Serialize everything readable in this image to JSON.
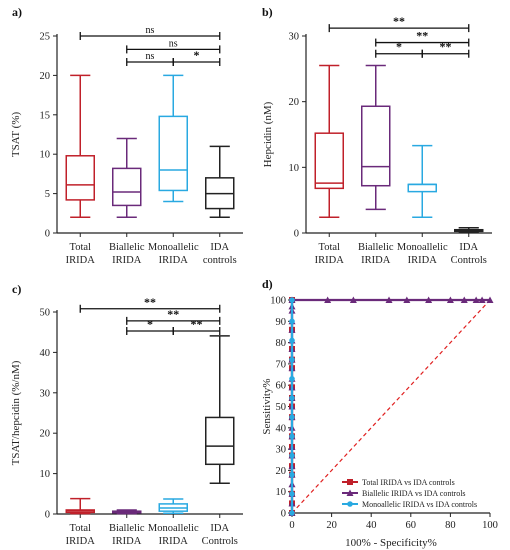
{
  "chart_data": [
    {
      "panel": "a)",
      "type": "box",
      "ylabel": "TSAT (%)",
      "ylim": [
        0,
        25
      ],
      "yticks": [
        0,
        5,
        10,
        15,
        20,
        25
      ],
      "categories": [
        "Total\nIRIDA",
        "Biallelic\nIRIDA",
        "Monoallelic\nIRIDA",
        "IDA\ncontrols"
      ],
      "colors": [
        "#c0202a",
        "#6a2a7a",
        "#29a9e1",
        "#222222"
      ],
      "boxes": [
        {
          "min": 2.0,
          "q1": 4.2,
          "median": 6.1,
          "q3": 9.8,
          "max": 20.0
        },
        {
          "min": 2.0,
          "q1": 3.5,
          "median": 5.2,
          "q3": 8.2,
          "max": 12.0
        },
        {
          "min": 4.0,
          "q1": 5.4,
          "median": 8.0,
          "q3": 14.8,
          "max": 20.0
        },
        {
          "min": 2.0,
          "q1": 3.1,
          "median": 5.0,
          "q3": 7.0,
          "max": 11.0
        }
      ],
      "significance": [
        {
          "from": 0,
          "to": 3,
          "label": "ns",
          "y": 25.0
        },
        {
          "from": 1,
          "to": 3,
          "label": "ns",
          "y": 23.3
        },
        {
          "from": 1,
          "to": 2,
          "label": "ns",
          "y": 21.7
        },
        {
          "from": 2,
          "to": 3,
          "label": "*",
          "y": 21.7
        }
      ]
    },
    {
      "panel": "b)",
      "type": "box",
      "ylabel": "Hepcidin (nM)",
      "ylim": [
        0,
        30
      ],
      "yticks": [
        0,
        10,
        20,
        30
      ],
      "categories": [
        "Total\nIRIDA",
        "Biallelic\nIRIDA",
        "Monoallelic\nIRIDA",
        "IDA\nControls"
      ],
      "colors": [
        "#c0202a",
        "#6a2a7a",
        "#29a9e1",
        "#222222"
      ],
      "boxes": [
        {
          "min": 2.4,
          "q1": 6.8,
          "median": 7.6,
          "q3": 15.2,
          "max": 25.5
        },
        {
          "min": 3.6,
          "q1": 7.2,
          "median": 10.1,
          "q3": 19.3,
          "max": 25.5
        },
        {
          "min": 2.4,
          "q1": 6.3,
          "median": 7.4,
          "q3": 7.4,
          "max": 13.3
        },
        {
          "min": 0.1,
          "q1": 0.25,
          "median": 0.4,
          "q3": 0.5,
          "max": 0.8
        }
      ],
      "significance": [
        {
          "from": 0,
          "to": 3,
          "label": "**",
          "y": 31.2
        },
        {
          "from": 1,
          "to": 3,
          "label": "**",
          "y": 29.0
        },
        {
          "from": 1,
          "to": 2,
          "label": "*",
          "y": 27.3
        },
        {
          "from": 2,
          "to": 3,
          "label": "**",
          "y": 27.3
        }
      ]
    },
    {
      "panel": "c)",
      "type": "box",
      "ylabel": "TSAT/hepcidin (%/nM)",
      "ylim": [
        0,
        50
      ],
      "yticks": [
        0,
        10,
        20,
        30,
        40,
        50
      ],
      "categories": [
        "Total\nIRIDA",
        "Biallelic\nIRIDA",
        "Monoallelic\nIRIDA",
        "IDA\nControls"
      ],
      "colors": [
        "#c0202a",
        "#6a2a7a",
        "#29a9e1",
        "#222222"
      ],
      "boxes": [
        {
          "min": 0.1,
          "q1": 0.4,
          "median": 0.8,
          "q3": 1.0,
          "max": 3.8
        },
        {
          "min": 0.1,
          "q1": 0.3,
          "median": 0.5,
          "q3": 0.7,
          "max": 1.0
        },
        {
          "min": 0.2,
          "q1": 0.7,
          "median": 1.5,
          "q3": 2.5,
          "max": 3.7
        },
        {
          "min": 7.6,
          "q1": 12.3,
          "median": 16.8,
          "q3": 23.9,
          "max": 44.1
        }
      ],
      "significance": [
        {
          "from": 0,
          "to": 3,
          "label": "**",
          "y": 50.8
        },
        {
          "from": 1,
          "to": 3,
          "label": "**",
          "y": 47.8
        },
        {
          "from": 1,
          "to": 2,
          "label": "*",
          "y": 45.3
        },
        {
          "from": 2,
          "to": 3,
          "label": "**",
          "y": 45.3
        }
      ]
    },
    {
      "panel": "d)",
      "type": "line",
      "xlabel": "100% - Specificity%",
      "ylabel": "Sensitivity%",
      "xlim": [
        0,
        100
      ],
      "ylim": [
        0,
        100
      ],
      "xticks": [
        0,
        20,
        40,
        60,
        80,
        100
      ],
      "yticks": [
        0,
        10,
        20,
        30,
        40,
        50,
        60,
        70,
        80,
        90,
        100
      ],
      "reference_line": {
        "x": [
          0,
          100
        ],
        "y": [
          0,
          100
        ],
        "color": "#e02020"
      },
      "legend_position": "bottom-right",
      "series": [
        {
          "name": "Total IRIDA vs IDA controls",
          "color": "#c0202a",
          "marker": "square",
          "x": [
            0,
            0,
            0,
            0,
            0,
            0,
            0,
            0,
            0,
            0,
            0,
            0,
            0,
            0,
            0,
            0,
            0
          ],
          "y": [
            0,
            4.5,
            9,
            18,
            22,
            27,
            31,
            36,
            45,
            50,
            54,
            59,
            68,
            72,
            77,
            86,
            100
          ]
        },
        {
          "name": "Biallelic IRIDA vs IDA controls",
          "color": "#6a2a7a",
          "marker": "triangle",
          "x": [
            0,
            0,
            0,
            0,
            0,
            0,
            0,
            0,
            0,
            0,
            0,
            0,
            0,
            0,
            0,
            0,
            0,
            0,
            0,
            0,
            0,
            0,
            0,
            0,
            18,
            31,
            49,
            58,
            69,
            80,
            87,
            93,
            96,
            100
          ],
          "y": [
            0,
            4.5,
            9,
            13.5,
            18,
            22,
            27,
            31,
            36,
            40,
            45,
            50,
            54,
            59,
            63,
            68,
            72,
            77,
            81,
            86,
            90,
            95,
            97,
            100,
            100,
            100,
            100,
            100,
            100,
            100,
            100,
            100,
            100,
            100
          ]
        },
        {
          "name": "Monoallelic IRIDA vs IDA controls",
          "color": "#29a9e1",
          "marker": "circle",
          "x": [
            0,
            0,
            0,
            0,
            0,
            0,
            0,
            0,
            0,
            0,
            0,
            0
          ],
          "y": [
            0,
            9,
            18,
            27,
            36,
            45,
            54,
            63,
            72,
            81,
            90,
            100
          ]
        }
      ]
    }
  ]
}
